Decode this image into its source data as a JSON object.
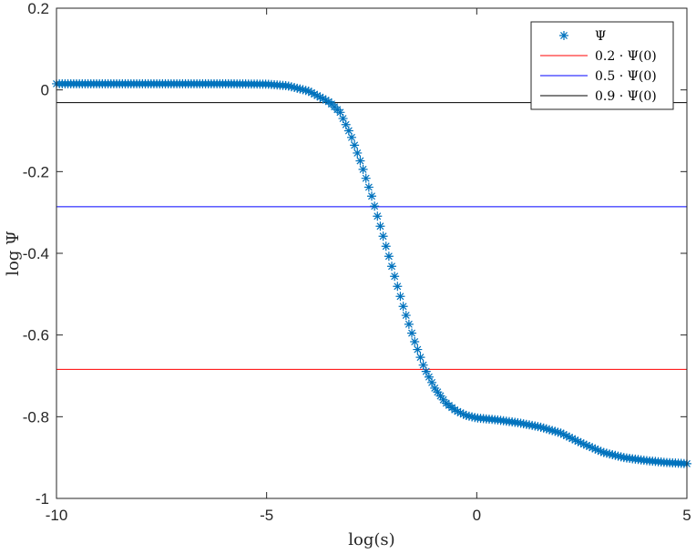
{
  "chart_data": {
    "type": "line",
    "title": "",
    "xlabel": "log(s)",
    "ylabel": "log Ψ",
    "xlim": [
      -10,
      5
    ],
    "ylim": [
      -1,
      0.2
    ],
    "x_ticks": [
      -10,
      -5,
      0,
      5
    ],
    "x_tick_labels": [
      "-10",
      "-5",
      "0",
      "5"
    ],
    "y_ticks": [
      0.2,
      0,
      -0.2,
      -0.4,
      -0.6,
      -0.8,
      -1
    ],
    "y_tick_labels": [
      "0.2",
      "0",
      "-0.2",
      "-0.4",
      "-0.6",
      "-0.8",
      "-1"
    ],
    "grid": false,
    "legend_position": "top-right",
    "series": [
      {
        "name": "Ψ",
        "marker": "asterisk",
        "color": "#0072BD",
        "points": [
          [
            -10.0,
            0.015
          ],
          [
            -9.0,
            0.015
          ],
          [
            -8.0,
            0.015
          ],
          [
            -7.0,
            0.015
          ],
          [
            -6.0,
            0.015
          ],
          [
            -5.0,
            0.014
          ],
          [
            -4.5,
            0.01
          ],
          [
            -4.0,
            -0.003
          ],
          [
            -3.5,
            -0.03
          ],
          [
            -3.25,
            -0.055
          ],
          [
            -3.0,
            -0.11
          ],
          [
            -2.75,
            -0.18
          ],
          [
            -2.5,
            -0.26
          ],
          [
            -2.25,
            -0.35
          ],
          [
            -2.0,
            -0.44
          ],
          [
            -1.75,
            -0.53
          ],
          [
            -1.5,
            -0.61
          ],
          [
            -1.25,
            -0.68
          ],
          [
            -1.0,
            -0.73
          ],
          [
            -0.75,
            -0.765
          ],
          [
            -0.5,
            -0.785
          ],
          [
            -0.25,
            -0.797
          ],
          [
            0.0,
            -0.803
          ],
          [
            0.5,
            -0.808
          ],
          [
            1.0,
            -0.815
          ],
          [
            1.5,
            -0.825
          ],
          [
            2.0,
            -0.84
          ],
          [
            2.5,
            -0.865
          ],
          [
            3.0,
            -0.887
          ],
          [
            3.5,
            -0.9
          ],
          [
            4.0,
            -0.907
          ],
          [
            4.5,
            -0.912
          ],
          [
            5.0,
            -0.915
          ]
        ]
      },
      {
        "name": "0.2 · Ψ(0)",
        "color": "#FF0000",
        "y": -0.684
      },
      {
        "name": "0.5 · Ψ(0)",
        "color": "#0000FF",
        "y": -0.286
      },
      {
        "name": "0.9 · Ψ(0)",
        "color": "#000000",
        "y": -0.031
      }
    ]
  }
}
